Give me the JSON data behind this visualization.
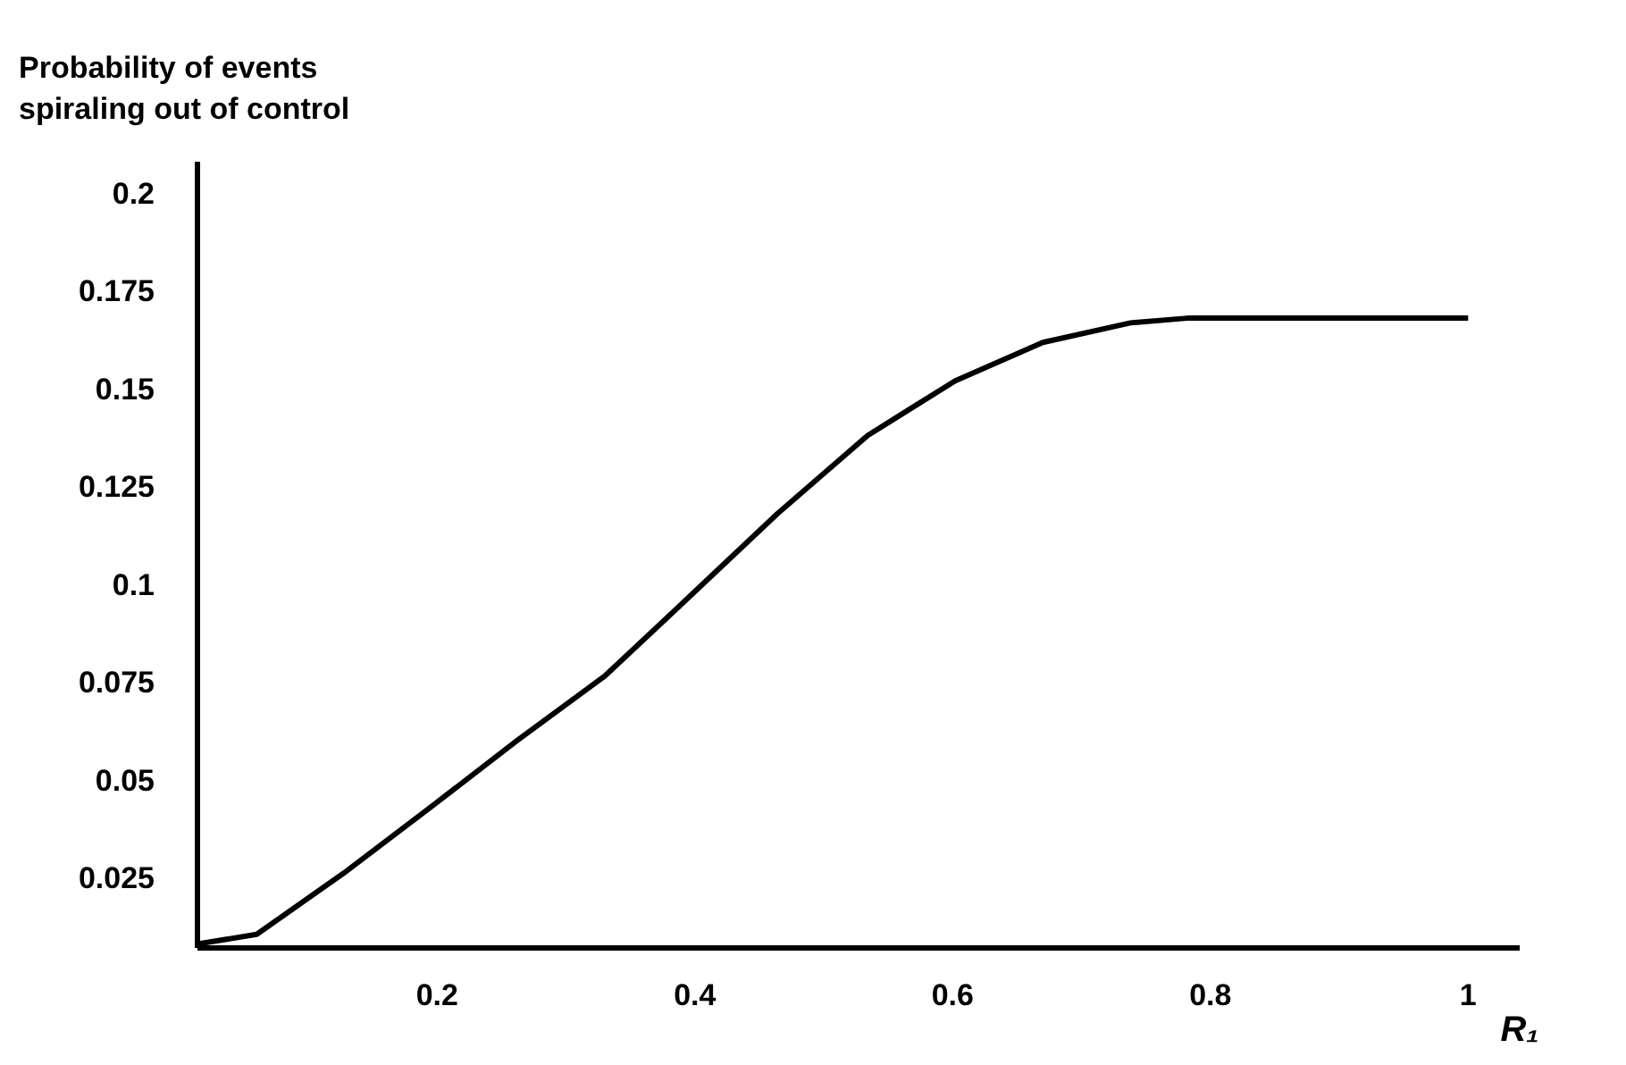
{
  "chart_data": {
    "type": "line",
    "ylabel": "Probability of events\nspiraling out of control",
    "xlabel": "R₁",
    "x": [
      0.014,
      0.06,
      0.127,
      0.195,
      0.262,
      0.33,
      0.398,
      0.464,
      0.534,
      0.602,
      0.67,
      0.738,
      0.782,
      1.0
    ],
    "series": [
      {
        "color": "#000000",
        "values": [
          0.008,
          0.0105,
          0.026,
          0.043,
          0.06,
          0.0765,
          0.0975,
          0.118,
          0.138,
          0.152,
          0.1618,
          0.1668,
          0.168,
          0.168
        ]
      }
    ],
    "xlim": [
      0.014,
      1.04
    ],
    "ylim": [
      0.007,
      0.208
    ],
    "xticks": [
      0.2,
      0.4,
      0.6,
      0.8,
      1
    ],
    "yticks": [
      0.025,
      0.05,
      0.075,
      0.1,
      0.125,
      0.15,
      0.175,
      0.2
    ],
    "grid": false,
    "marker": "none",
    "line_style": "solid"
  }
}
